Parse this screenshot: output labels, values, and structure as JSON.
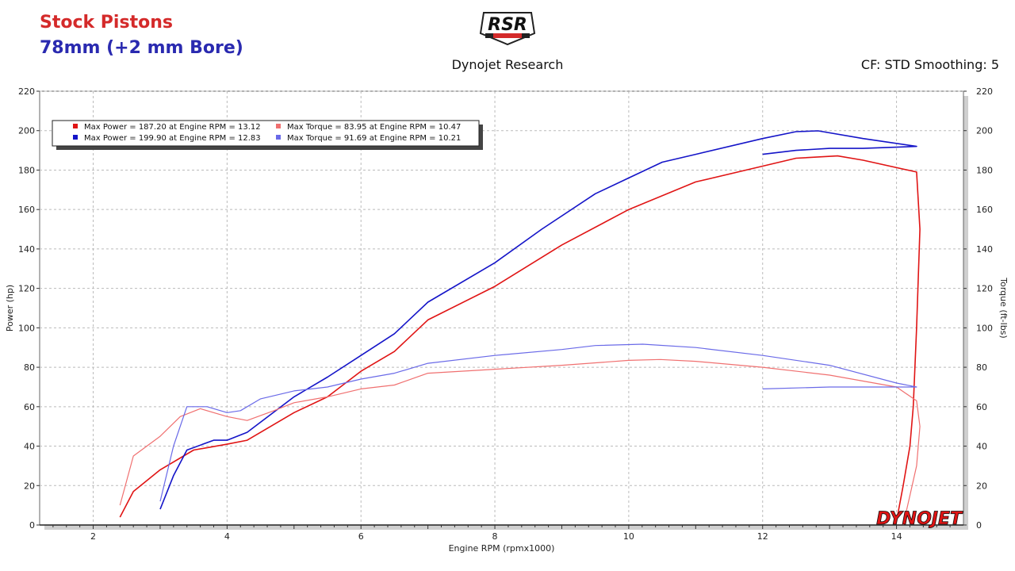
{
  "header": {
    "title_line1": "Stock Pistons",
    "title_line2": "78mm (+2 mm Bore)",
    "center_text": "Dynojet Research",
    "right_text": "CF: STD Smoothing: 5",
    "logo_text": "RSR"
  },
  "watermark": "DYNOJET",
  "colors": {
    "power_stock": "#e01414",
    "power_bore": "#1414c8",
    "torque_stock": "#f07070",
    "torque_bore": "#6a6ae8",
    "title_stock": "#d42a2a",
    "title_bore": "#2a2ab0"
  },
  "chart_data": {
    "type": "line",
    "xlabel": "Engine RPM (rpmx1000)",
    "ylabel": "Power (hp)",
    "y2label": "Torque (ft-lbs)",
    "xlim": [
      1.2,
      15.0
    ],
    "ylim": [
      0,
      220
    ],
    "y2lim": [
      0,
      220
    ],
    "x_ticks": [
      "2",
      "4",
      "6",
      "8",
      "10",
      "12",
      "14"
    ],
    "x_tick_values": [
      2,
      4,
      6,
      8,
      10,
      12,
      14
    ],
    "y_ticks": [
      "0",
      "20",
      "40",
      "60",
      "80",
      "100",
      "120",
      "140",
      "160",
      "180",
      "200",
      "220"
    ],
    "y_tick_values": [
      0,
      20,
      40,
      60,
      80,
      100,
      120,
      140,
      160,
      180,
      200,
      220
    ],
    "grid": true,
    "legend_position": "top-left",
    "legend": [
      "Max Power = 187.20 at Engine RPM = 13.12",
      "Max Torque = 83.95 at Engine RPM = 10.47",
      "Max Power = 199.90 at Engine RPM = 12.83",
      "Max Torque = 91.69 at Engine RPM = 10.21"
    ],
    "series": [
      {
        "legend_index": 0,
        "color_key": "power_stock",
        "points": [
          [
            2.4,
            4
          ],
          [
            2.6,
            17
          ],
          [
            3.0,
            28
          ],
          [
            3.5,
            38
          ],
          [
            4.0,
            41
          ],
          [
            4.3,
            43
          ],
          [
            5.0,
            57
          ],
          [
            5.5,
            65
          ],
          [
            6.0,
            78
          ],
          [
            6.5,
            88
          ],
          [
            7.0,
            104
          ],
          [
            8.0,
            121
          ],
          [
            9.0,
            142
          ],
          [
            10.0,
            160
          ],
          [
            11.0,
            174
          ],
          [
            12.0,
            182
          ],
          [
            12.5,
            186
          ],
          [
            13.12,
            187.2
          ],
          [
            13.5,
            185
          ],
          [
            14.3,
            179
          ],
          [
            14.35,
            150
          ],
          [
            14.3,
            100
          ],
          [
            14.25,
            60
          ],
          [
            14.2,
            40
          ],
          [
            14.1,
            20
          ],
          [
            14.0,
            2
          ]
        ]
      },
      {
        "legend_index": 2,
        "color_key": "power_bore",
        "points": [
          [
            3.0,
            8
          ],
          [
            3.2,
            25
          ],
          [
            3.4,
            38
          ],
          [
            3.8,
            43
          ],
          [
            4.0,
            43
          ],
          [
            4.3,
            47
          ],
          [
            5.0,
            65
          ],
          [
            5.5,
            75
          ],
          [
            6.0,
            86
          ],
          [
            6.5,
            97
          ],
          [
            7.0,
            113
          ],
          [
            8.0,
            133
          ],
          [
            8.7,
            150
          ],
          [
            9.5,
            168
          ],
          [
            10.0,
            176
          ],
          [
            10.5,
            184
          ],
          [
            11.0,
            188
          ],
          [
            12.0,
            196
          ],
          [
            12.5,
            199.5
          ],
          [
            12.83,
            199.9
          ],
          [
            13.5,
            196
          ],
          [
            14.3,
            192
          ],
          [
            13.5,
            191
          ],
          [
            13.0,
            191
          ],
          [
            12.5,
            190
          ],
          [
            12.0,
            188
          ]
        ]
      },
      {
        "legend_index": 1,
        "color_key": "torque_stock",
        "points": [
          [
            2.4,
            10
          ],
          [
            2.6,
            35
          ],
          [
            3.0,
            45
          ],
          [
            3.3,
            55
          ],
          [
            3.6,
            59
          ],
          [
            4.0,
            55
          ],
          [
            4.3,
            53
          ],
          [
            4.7,
            58
          ],
          [
            5.0,
            62
          ],
          [
            5.5,
            65
          ],
          [
            6.0,
            69
          ],
          [
            6.5,
            71
          ],
          [
            7.0,
            77
          ],
          [
            8.0,
            79
          ],
          [
            9.0,
            81
          ],
          [
            10.0,
            83.5
          ],
          [
            10.47,
            83.95
          ],
          [
            11.0,
            83
          ],
          [
            12.0,
            80
          ],
          [
            13.0,
            76
          ],
          [
            14.0,
            70
          ],
          [
            14.3,
            63
          ],
          [
            14.35,
            50
          ],
          [
            14.3,
            30
          ],
          [
            14.2,
            15
          ],
          [
            14.1,
            0
          ]
        ]
      },
      {
        "legend_index": 3,
        "color_key": "torque_bore",
        "points": [
          [
            3.0,
            12
          ],
          [
            3.2,
            40
          ],
          [
            3.4,
            60
          ],
          [
            3.7,
            60
          ],
          [
            4.0,
            57
          ],
          [
            4.2,
            58
          ],
          [
            4.5,
            64
          ],
          [
            5.0,
            68
          ],
          [
            5.5,
            70
          ],
          [
            6.0,
            74
          ],
          [
            6.5,
            77
          ],
          [
            7.0,
            82
          ],
          [
            8.0,
            86
          ],
          [
            9.0,
            89
          ],
          [
            9.5,
            91
          ],
          [
            10.21,
            91.69
          ],
          [
            11.0,
            90
          ],
          [
            12.0,
            86
          ],
          [
            13.0,
            81
          ],
          [
            14.0,
            72
          ],
          [
            14.3,
            70
          ],
          [
            13.5,
            70
          ],
          [
            13.0,
            70
          ],
          [
            12.0,
            69
          ]
        ]
      }
    ]
  }
}
